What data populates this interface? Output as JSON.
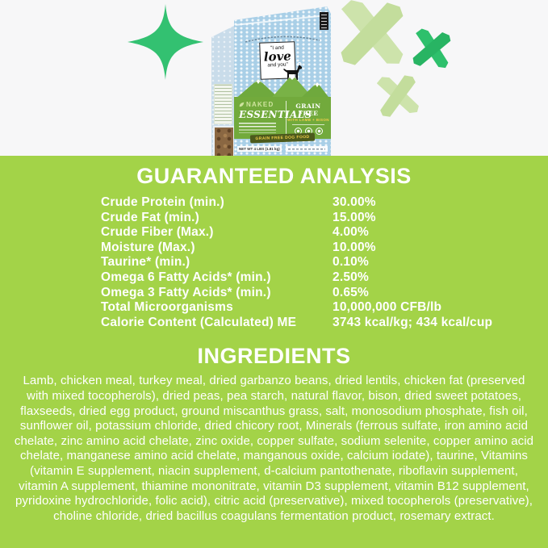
{
  "colors": {
    "hero_background": "#f7f7f8",
    "section_background": "#a3d348",
    "accent_green": "#33c171",
    "pale_tape_green": "#cde3ab",
    "bag_blue": "#a9cfe7",
    "bag_panel_green": "#72aa3c",
    "banner_olive": "#4c5a1c",
    "banner_text_yellow": "#f2cf4a",
    "text_white": "#ffffff"
  },
  "hero": {
    "bag": {
      "brand_line1": "\"I and",
      "brand_line2": "love",
      "brand_line3": "and you\"",
      "product_line": "NAKED",
      "product_name": "ESSENTIALS",
      "variant_title": "GRAIN FREE",
      "variant_subtitle": "WITH LAMB + BISON",
      "banner": "GRAIN FREE DOG FOOD",
      "net_weight": "NET WT 4 LBS (1.81 kg)"
    }
  },
  "guaranteed_analysis": {
    "title": "GUARANTEED ANALYSIS",
    "rows": [
      {
        "label": "Crude Protein (min.)",
        "value": "30.00%"
      },
      {
        "label": "Crude Fat (min.)",
        "value": "15.00%"
      },
      {
        "label": "Crude Fiber (Max.)",
        "value": "4.00%"
      },
      {
        "label": "Moisture (Max.)",
        "value": "10.00%"
      },
      {
        "label": "Taurine* (min.)",
        "value": "0.10%"
      },
      {
        "label": "Omega 6 Fatty Acids* (min.)",
        "value": "2.50%"
      },
      {
        "label": "Omega 3 Fatty Acids* (min.)",
        "value": "0.65%"
      },
      {
        "label": "Total Microorganisms",
        "value": "10,000,000 CFB/lb"
      },
      {
        "label": "Calorie Content (Calculated) ME",
        "value": "3743 kcal/kg; 434 kcal/cup"
      }
    ]
  },
  "ingredients": {
    "title": "INGREDIENTS",
    "text": "Lamb, chicken meal, turkey meal, dried garbanzo beans, dried lentils, chicken fat (preserved with mixed tocopherols), dried peas, pea starch, natural flavor, bison, dried sweet potatoes, flaxseeds, dried egg product, ground miscanthus grass, salt, monosodium phosphate, fish oil, sunflower oil, potassium chloride, dried chicory root, Minerals (ferrous sulfate, iron amino acid chelate, zinc amino acid chelate, zinc oxide, copper sulfate, sodium selenite, copper amino acid chelate, manganese amino acid chelate, manganous oxide, calcium iodate), taurine, Vitamins (vitamin E supplement, niacin supplement, d-calcium pantothenate, riboflavin supplement, vitamin A supplement, thiamine mononitrate, vitamin D3 supplement, vitamin B12 supplement, pyridoxine hydrochloride, folic acid), citric acid (preservative), mixed tocopherols (preservative), choline chloride, dried bacillus coagulans fermentation product, rosemary extract."
  }
}
